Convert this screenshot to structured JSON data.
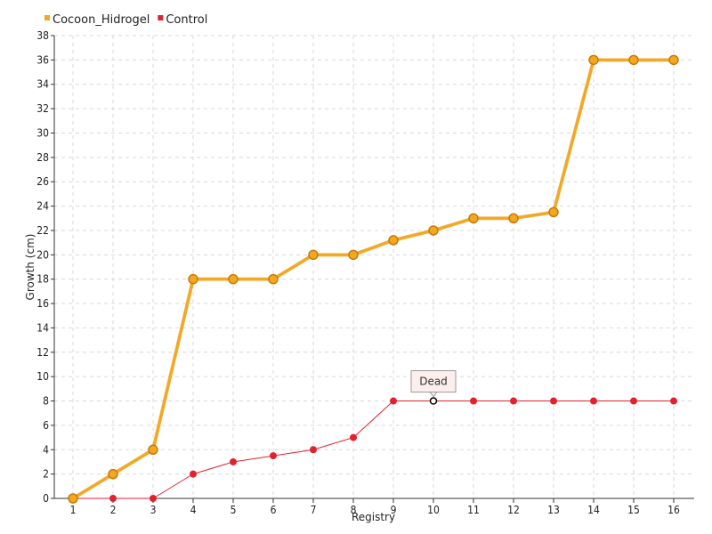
{
  "chart_data": {
    "type": "line",
    "xlabel": "Registry",
    "ylabel": "Growth (cm)",
    "x": [
      1,
      2,
      3,
      4,
      5,
      6,
      7,
      8,
      9,
      10,
      11,
      12,
      13,
      14,
      15,
      16
    ],
    "xlim": [
      1,
      16
    ],
    "ylim": [
      0,
      38
    ],
    "ytick_step": 2,
    "grid": true,
    "legend_position": "top-left",
    "series": [
      {
        "name": "Cocoon_Hidrogel",
        "color": "#f4a81d",
        "values": [
          0,
          2,
          4,
          18,
          18,
          18,
          20,
          20,
          21.2,
          22,
          23,
          23,
          23.5,
          36,
          36,
          36
        ]
      },
      {
        "name": "Control",
        "color": "#e0212e",
        "values": [
          0,
          0,
          0,
          2,
          3,
          3.5,
          4,
          5,
          8,
          8,
          8,
          8,
          8,
          8,
          8,
          8
        ]
      }
    ],
    "annotations": [
      {
        "series": "Control",
        "x": 10,
        "text": "Dead"
      }
    ]
  }
}
